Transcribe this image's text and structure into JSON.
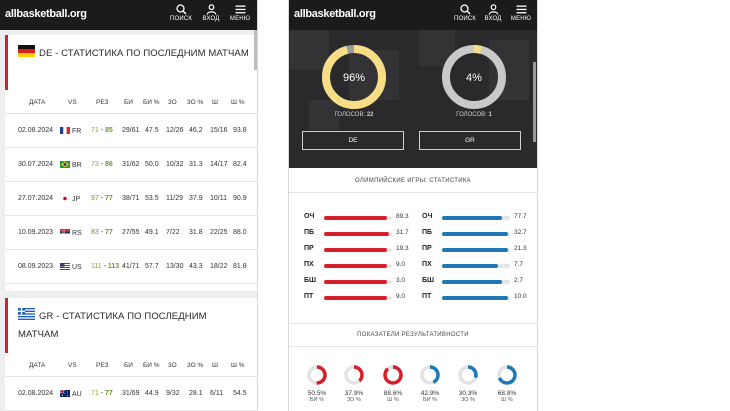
{
  "app": {
    "logo": "allbasketball.org",
    "nav": {
      "search": "ПОИСК",
      "login": "ВХОД",
      "menu": "МЕНЮ"
    }
  },
  "left": {
    "de_card": {
      "title": "DE - СТАТИСТИКА ПО ПОСЛЕДНИМ МАТЧАМ",
      "columns": [
        "ДАТА",
        "VS",
        "РЕЗ",
        "БИ",
        "БИ %",
        "3О",
        "3О %",
        "Ш",
        "Ш %"
      ],
      "rows": [
        {
          "date": "02.08.2024",
          "opp": "FR",
          "a": "71",
          "b": "85",
          "bi": "29/61",
          "bi_pct": "47.5",
          "to": "12/26",
          "to_pct": "46.2",
          "sh": "15/16",
          "sh_pct": "93.8"
        },
        {
          "date": "30.07.2024",
          "opp": "BR",
          "a": "73",
          "b": "86",
          "bi": "31/62",
          "bi_pct": "50.0",
          "to": "10/32",
          "to_pct": "31.3",
          "sh": "14/17",
          "sh_pct": "82.4"
        },
        {
          "date": "27.07.2024",
          "opp": "JP",
          "a": "97",
          "b": "77",
          "bi": "38/71",
          "bi_pct": "53.5",
          "to": "11/29",
          "to_pct": "37.9",
          "sh": "10/11",
          "sh_pct": "90.9"
        },
        {
          "date": "10.09.2023",
          "opp": "RS",
          "a": "83",
          "b": "77",
          "bi": "27/55",
          "bi_pct": "49.1",
          "to": "7/22",
          "to_pct": "31.8",
          "sh": "22/25",
          "sh_pct": "88.0"
        },
        {
          "date": "08.09.2023",
          "opp": "US",
          "a": "111",
          "b": "113",
          "bi": "41/71",
          "bi_pct": "57.7",
          "to": "13/30",
          "to_pct": "43.3",
          "sh": "18/22",
          "sh_pct": "81.8"
        }
      ]
    },
    "gr_card": {
      "title": "GR - СТАТИСТИКА ПО ПОСЛЕДНИМ МАТЧАМ",
      "columns": [
        "ДАТА",
        "VS",
        "РЕЗ",
        "БИ",
        "БИ %",
        "3О",
        "3О %",
        "Ш",
        "Ш %"
      ],
      "rows": [
        {
          "date": "02.08.2024",
          "opp": "AU",
          "a": "71",
          "b": "77",
          "bi": "31/69",
          "bi_pct": "44.9",
          "to": "9/32",
          "to_pct": "28.1",
          "sh": "6/11",
          "sh_pct": "54.5"
        }
      ]
    }
  },
  "right": {
    "votes": {
      "left": {
        "pct": "96%",
        "value": 96,
        "label": "ГОЛОСОВ:",
        "count": "22",
        "button": "DE"
      },
      "right": {
        "pct": "4%",
        "value": 4,
        "label": "ГОЛОСОВ:",
        "count": "1",
        "button": "GR"
      }
    },
    "stats_title": "ОЛИМПИЙСКИЕ ИГРЫ: СТАТИСТИКА",
    "stats_de": [
      {
        "label": "ОЧ",
        "value": "89.3",
        "fill": 0.93
      },
      {
        "label": "ПБ",
        "value": "31.7",
        "fill": 0.95
      },
      {
        "label": "ПР",
        "value": "19.3",
        "fill": 0.92
      },
      {
        "label": "ПХ",
        "value": "9.0",
        "fill": 0.92
      },
      {
        "label": "БШ",
        "value": "3.0",
        "fill": 0.92
      },
      {
        "label": "ПТ",
        "value": "9.0",
        "fill": 0.92
      }
    ],
    "stats_gr": [
      {
        "label": "ОЧ",
        "value": "77.7",
        "fill": 0.88
      },
      {
        "label": "ПБ",
        "value": "32.7",
        "fill": 0.97
      },
      {
        "label": "ПР",
        "value": "21.3",
        "fill": 0.97
      },
      {
        "label": "ПХ",
        "value": "7.7",
        "fill": 0.82
      },
      {
        "label": "БШ",
        "value": "2.7",
        "fill": 0.88
      },
      {
        "label": "ПТ",
        "value": "10.0",
        "fill": 0.97
      }
    ],
    "eff_title": "ПОКАЗАТЕЛИ РЕЗУЛЬТАТИВНОСТИ",
    "eff": [
      {
        "pct": "50.5%",
        "value": 50.5,
        "cap": "БИ %",
        "color": "#d61f2c"
      },
      {
        "pct": "37.9%",
        "value": 37.9,
        "cap": "3О %",
        "color": "#d61f2c"
      },
      {
        "pct": "88.6%",
        "value": 88.6,
        "cap": "Ш %",
        "color": "#d61f2c"
      },
      {
        "pct": "42.9%",
        "value": 42.9,
        "cap": "БИ %",
        "color": "#1e78b4"
      },
      {
        "pct": "30.3%",
        "value": 30.3,
        "cap": "3О %",
        "color": "#1e78b4"
      },
      {
        "pct": "68.8%",
        "value": 68.8,
        "cap": "Ш %",
        "color": "#1e78b4"
      }
    ]
  },
  "colors": {
    "red": "#d61f2c",
    "blue": "#1e78b4",
    "gold": "#f6dd86",
    "gray": "#c9c9c9",
    "win": "#6a9a1f"
  }
}
